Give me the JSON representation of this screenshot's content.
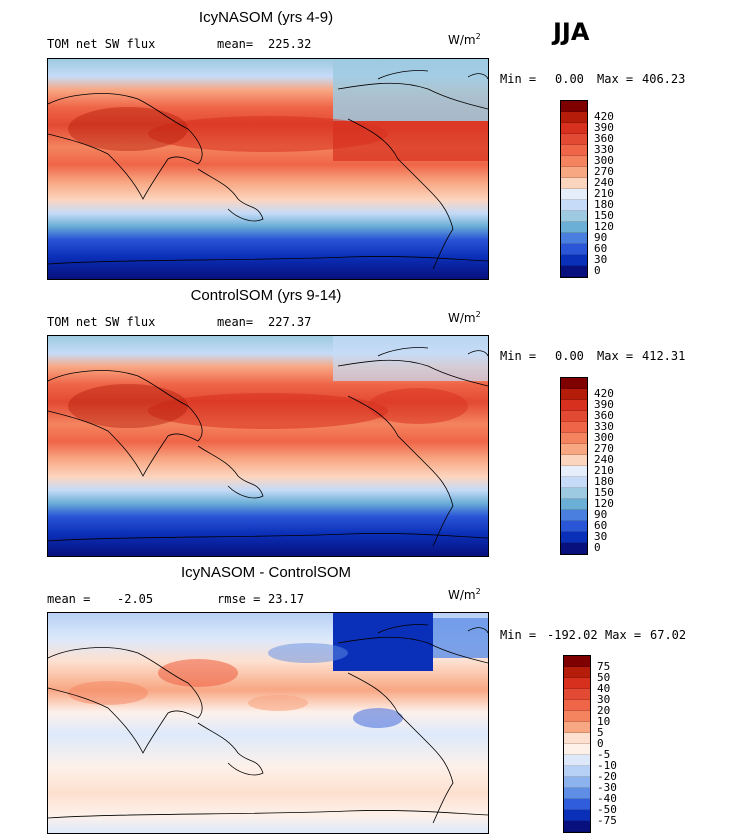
{
  "season": "JJA",
  "unit_base": "W/m",
  "unit_exp": "2",
  "panels": [
    {
      "title": "IcyNASOM (yrs 4-9)",
      "left_label": "TOM net SW flux",
      "stat_label": "mean=",
      "stat_value": "225.32",
      "min_label": "Min =",
      "min_value": "0.00",
      "max_label": "Max =",
      "max_value": "406.23",
      "ticks": [
        "420",
        "390",
        "360",
        "330",
        "300",
        "270",
        "240",
        "210",
        "180",
        "150",
        "120",
        "90",
        "60",
        "30",
        "0"
      ],
      "colors": [
        "#7f0000",
        "#b51d0a",
        "#d7301f",
        "#e34a33",
        "#ef6548",
        "#f4845f",
        "#f8a783",
        "#fcd5bf",
        "#e6eefb",
        "#c6dbf7",
        "#9ecae1",
        "#6baed6",
        "#4a7fe0",
        "#2a55d6",
        "#0a2fb8",
        "#08107e"
      ]
    },
    {
      "title": "ControlSOM (yrs 9-14)",
      "left_label": "TOM net SW flux",
      "stat_label": "mean=",
      "stat_value": "227.37",
      "min_label": "Min =",
      "min_value": "0.00",
      "max_label": "Max =",
      "max_value": "412.31",
      "ticks": [
        "420",
        "390",
        "360",
        "330",
        "300",
        "270",
        "240",
        "210",
        "180",
        "150",
        "120",
        "90",
        "60",
        "30",
        "0"
      ],
      "colors": [
        "#7f0000",
        "#b51d0a",
        "#d7301f",
        "#e34a33",
        "#ef6548",
        "#f4845f",
        "#f8a783",
        "#fcd5bf",
        "#e6eefb",
        "#c6dbf7",
        "#9ecae1",
        "#6baed6",
        "#4a7fe0",
        "#2a55d6",
        "#0a2fb8",
        "#08107e"
      ]
    },
    {
      "title": "IcyNASOM - ControlSOM",
      "left_label": "mean =",
      "left_value": "-2.05",
      "stat_label": "rmse =",
      "stat_value": "23.17",
      "min_label": "Min =",
      "min_value": "-192.02",
      "max_label": "Max =",
      "max_value": "67.02",
      "ticks": [
        "75",
        "50",
        "40",
        "30",
        "20",
        "10",
        "5",
        "0",
        "-5",
        "-10",
        "-20",
        "-30",
        "-40",
        "-50",
        "-75"
      ],
      "colors": [
        "#7f0000",
        "#b51d0a",
        "#d7301f",
        "#e34a33",
        "#ef6548",
        "#f4845f",
        "#f8a783",
        "#fde0cf",
        "#fdf1ea",
        "#dde9fb",
        "#b7d0f5",
        "#8db3ee",
        "#5f8ee6",
        "#2f5ddb",
        "#0a2fb8",
        "#08107e"
      ]
    }
  ]
}
